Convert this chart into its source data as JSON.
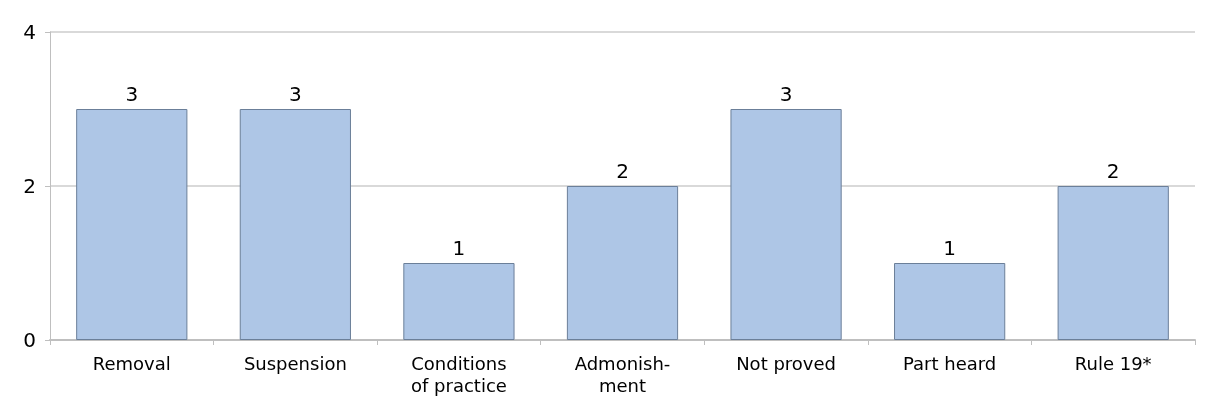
{
  "chart_data": {
    "type": "bar",
    "categories": [
      "Removal",
      "Suspension",
      "Conditions\nof practice",
      "Admonish-\nment",
      "Not proved",
      "Part heard",
      "Rule 19*"
    ],
    "values": [
      3,
      3,
      1,
      2,
      3,
      1,
      2
    ],
    "color": "#aec6e6",
    "ylim": [
      0,
      4
    ],
    "yticks": [
      0,
      2,
      4
    ],
    "grid": "y",
    "data_labels": true
  }
}
